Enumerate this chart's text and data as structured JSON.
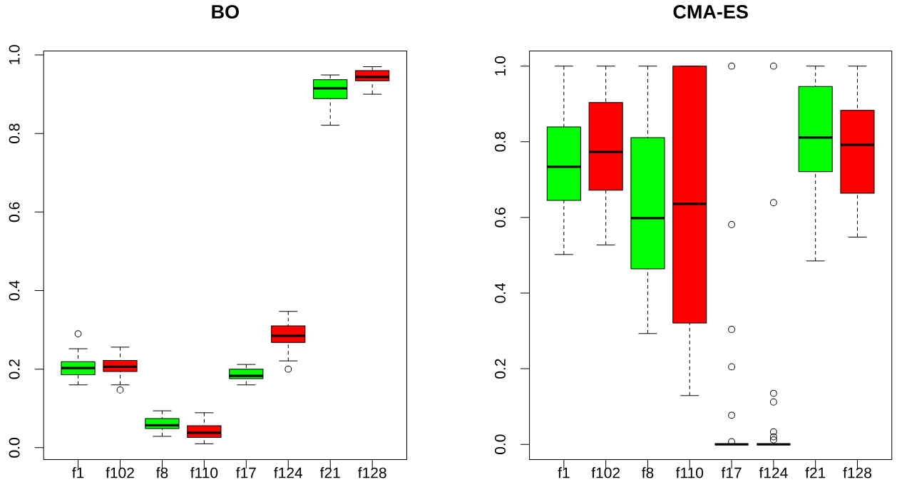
{
  "chart_data": [
    {
      "type": "box",
      "title": "BO",
      "categories": [
        "f1",
        "f102",
        "f8",
        "f110",
        "f17",
        "f124",
        "f21",
        "f128"
      ],
      "colors": [
        "#00ff00",
        "#ff0000",
        "#00ff00",
        "#ff0000",
        "#00ff00",
        "#ff0000",
        "#00ff00",
        "#ff0000"
      ],
      "boxes": [
        {
          "low": 0.16,
          "q1": 0.186,
          "median": 0.203,
          "q3": 0.219,
          "high": 0.252,
          "outliers": [
            0.29
          ]
        },
        {
          "low": 0.16,
          "q1": 0.194,
          "median": 0.206,
          "q3": 0.222,
          "high": 0.256,
          "outliers": [
            0.147
          ]
        },
        {
          "low": 0.029,
          "q1": 0.049,
          "median": 0.057,
          "q3": 0.074,
          "high": 0.094
        },
        {
          "low": 0.01,
          "q1": 0.026,
          "median": 0.038,
          "q3": 0.056,
          "high": 0.089
        },
        {
          "low": 0.16,
          "q1": 0.176,
          "median": 0.183,
          "q3": 0.2,
          "high": 0.212
        },
        {
          "low": 0.221,
          "q1": 0.268,
          "median": 0.285,
          "q3": 0.31,
          "high": 0.347,
          "outliers": [
            0.2
          ]
        },
        {
          "low": 0.821,
          "q1": 0.889,
          "median": 0.915,
          "q3": 0.937,
          "high": 0.949
        },
        {
          "low": 0.9,
          "q1": 0.934,
          "median": 0.944,
          "q3": 0.96,
          "high": 0.97
        }
      ],
      "ylim": [
        -0.03,
        1.01
      ],
      "yticks": [
        {
          "value": 0,
          "label": "0.0"
        },
        {
          "value": 0.2,
          "label": "0.2"
        },
        {
          "value": 0.4,
          "label": "0.4"
        },
        {
          "value": 0.6,
          "label": "0.6"
        },
        {
          "value": 0.8,
          "label": "0.8"
        },
        {
          "value": 1,
          "label": "1.0"
        }
      ]
    },
    {
      "type": "box",
      "title": "CMA-ES",
      "categories": [
        "f1",
        "f102",
        "f8",
        "f110",
        "f17",
        "f124",
        "f21",
        "f128"
      ],
      "colors": [
        "#00ff00",
        "#ff0000",
        "#00ff00",
        "#ff0000",
        "#000000",
        "#000000",
        "#00ff00",
        "#ff0000"
      ],
      "boxes": [
        {
          "low": 0.502,
          "q1": 0.645,
          "median": 0.734,
          "q3": 0.839,
          "high": 1.0
        },
        {
          "low": 0.527,
          "q1": 0.672,
          "median": 0.773,
          "q3": 0.904,
          "high": 1.0
        },
        {
          "low": 0.293,
          "q1": 0.464,
          "median": 0.598,
          "q3": 0.811,
          "high": 1.0
        },
        {
          "low": 0.129,
          "q1": 0.321,
          "median": 0.636,
          "q3": 1.0,
          "high": 1.0
        },
        {
          "low": 0,
          "q1": 0,
          "median": 0,
          "q3": 0,
          "high": 0,
          "outliers": [
            1.0,
            0.581,
            0.304,
            0.205,
            0.077,
            0.007
          ]
        },
        {
          "low": 0,
          "q1": 0,
          "median": 0,
          "q3": 0,
          "high": 0,
          "outliers": [
            1.0,
            0.639,
            0.135,
            0.112,
            0.033,
            0.02,
            0.012
          ]
        },
        {
          "low": 0.485,
          "q1": 0.721,
          "median": 0.811,
          "q3": 0.946,
          "high": 1.0
        },
        {
          "low": 0.548,
          "q1": 0.664,
          "median": 0.792,
          "q3": 0.883,
          "high": 1.0
        }
      ],
      "ylim": [
        -0.04,
        1.04
      ],
      "yticks": [
        {
          "value": 0,
          "label": "0.0"
        },
        {
          "value": 0.2,
          "label": "0.2"
        },
        {
          "value": 0.4,
          "label": "0.4"
        },
        {
          "value": 0.6,
          "label": "0.6"
        },
        {
          "value": 0.8,
          "label": "0.8"
        },
        {
          "value": 1,
          "label": "1.0"
        }
      ]
    }
  ]
}
